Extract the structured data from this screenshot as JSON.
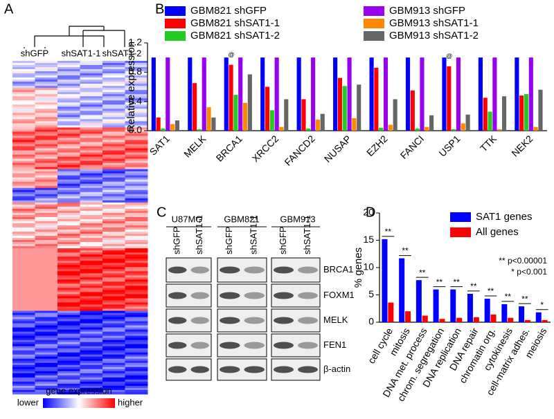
{
  "panels": [
    "A",
    "B",
    "C",
    "D"
  ],
  "heatmap": {
    "columns": [
      "shGFP",
      "shSAT1-1",
      "shSAT1-2"
    ],
    "colorbar_title": "gene expression",
    "low_label": "lower",
    "high_label": "higher"
  },
  "blot": {
    "cell_lines": [
      "U87MG",
      "GBM821",
      "GBM913"
    ],
    "conditions": [
      "shGFP",
      "shSAT1-1"
    ],
    "proteins": [
      "BRCA1",
      "FOXM1",
      "MELK",
      "FEN1",
      "β-actin"
    ]
  },
  "chart_data": [
    {
      "type": "bar",
      "ylabel": "Relative expression",
      "categories": [
        "SAT1",
        "MELK",
        "BRCA1",
        "XRCC2",
        "FANCD2",
        "NUSAP",
        "EZH2",
        "FANCI",
        "USP1",
        "TTK",
        "NEK2"
      ],
      "series": [
        {
          "name": "GBM821 shGFP",
          "color": "#0000ff",
          "values": [
            1,
            1,
            1,
            1,
            1,
            1,
            1,
            1,
            1,
            1,
            1
          ]
        },
        {
          "name": "GBM821 shSAT1-1",
          "color": "#ff0000",
          "values": [
            0.18,
            0.65,
            0.9,
            0.6,
            0.43,
            0.72,
            0.86,
            0.55,
            0.88,
            0.45,
            0.48
          ]
        },
        {
          "name": "GBM821 shSAT1-2",
          "color": "#22cc22",
          "values": [
            0.03,
            0.02,
            0.49,
            0.28,
            0.03,
            0.61,
            0.04,
            0.03,
            0.02,
            0.26,
            0.5
          ]
        },
        {
          "name": "GBM913 shGFP",
          "color": "#9900ee",
          "values": [
            1,
            1,
            1,
            1,
            1,
            1,
            1,
            1,
            1,
            1,
            1
          ]
        },
        {
          "name": "GBM913 shSAT1-1",
          "color": "#ff8800",
          "values": [
            0.09,
            0.32,
            0.38,
            0.05,
            0.15,
            0.17,
            0.08,
            0.05,
            0.1,
            0.02,
            0.05
          ]
        },
        {
          "name": "GBM913 shSAT1-2",
          "color": "#666666",
          "values": [
            0.14,
            0.18,
            0.77,
            0.43,
            0.23,
            0.63,
            0.43,
            0.21,
            0.22,
            0.47,
            0.56
          ]
        }
      ],
      "ylim": [
        0,
        1.2
      ],
      "yticks": [
        {
          "value": 0,
          "label": "0.0"
        },
        0.4,
        0.8,
        1.2
      ],
      "annotations": [
        {
          "text": "@",
          "x": "BRCA1"
        },
        {
          "text": "@",
          "x": "USP1"
        }
      ]
    },
    {
      "type": "bar",
      "ylabel": "% genes",
      "categories": [
        "cell cycle",
        "mitosis",
        "DNA met. process",
        "chrom. segregation",
        "DNA replication",
        "DNA repair",
        "chromatin org.",
        "cytokinesis",
        "cell-matrix adhes.",
        "meiosis"
      ],
      "series": [
        {
          "name": "SAT1 genes",
          "color": "#0000ff",
          "values": [
            15.2,
            11.7,
            7.7,
            6.0,
            6.0,
            5.2,
            4.3,
            3.3,
            2.9,
            1.8
          ]
        },
        {
          "name": "All genes",
          "color": "#ff0000",
          "values": [
            3.6,
            2.0,
            1.2,
            0.6,
            0.8,
            0.9,
            1.4,
            0.8,
            0.4,
            0.4
          ]
        }
      ],
      "significance": [
        "**",
        "**",
        "**",
        "**",
        "**",
        "**",
        "**",
        "**",
        "**",
        "*"
      ],
      "notes": [
        "** p<0.00001",
        "* p<0.001"
      ],
      "ylim": [
        0,
        20
      ],
      "yticks": [
        0,
        5,
        10,
        15,
        20
      ]
    }
  ]
}
